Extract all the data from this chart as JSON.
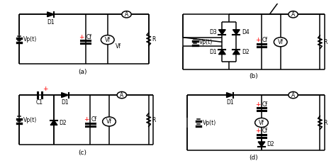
{
  "bg_color": "#ffffff",
  "lc": "#000000",
  "rc": "#ff0000",
  "fs": 5.5,
  "lfs": 6.5,
  "lw": 1.1,
  "labels": [
    "(a)",
    "(b)",
    "(c)",
    "(d)"
  ]
}
